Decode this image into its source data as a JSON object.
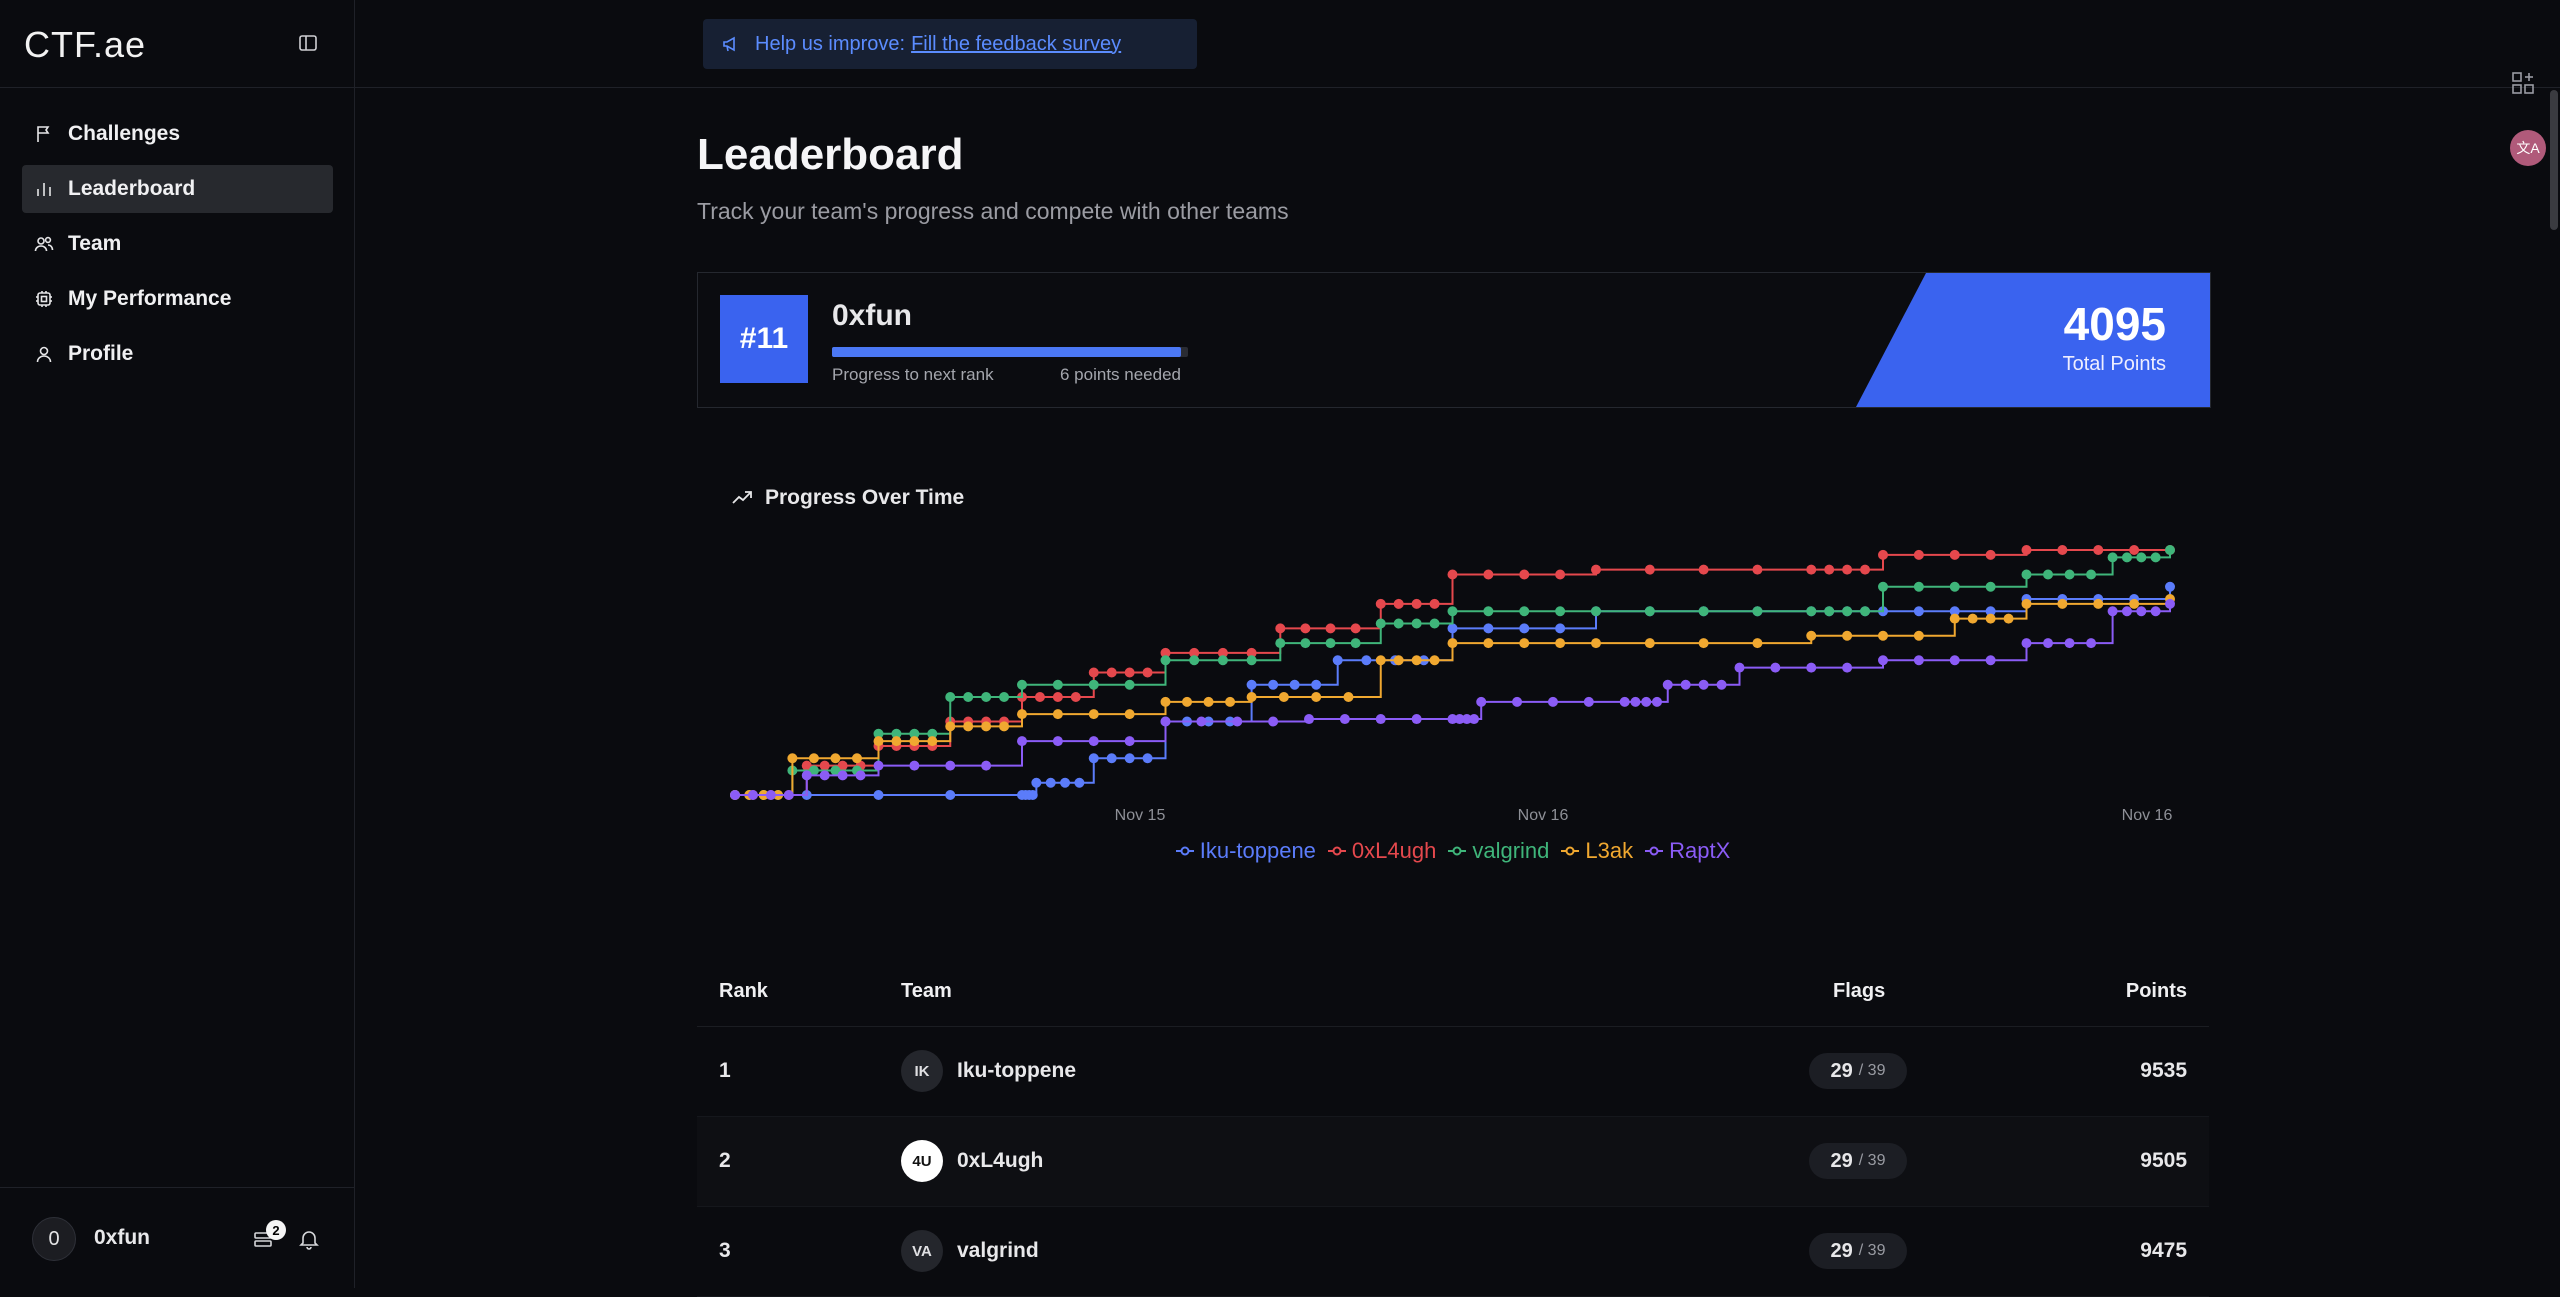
{
  "brand": {
    "logo": "CTF.ae"
  },
  "sidebar": {
    "items": [
      {
        "label": "Challenges",
        "icon": "flag-icon",
        "active": false
      },
      {
        "label": "Leaderboard",
        "icon": "bar-chart-icon",
        "active": true
      },
      {
        "label": "Team",
        "icon": "users-icon",
        "active": false
      },
      {
        "label": "My Performance",
        "icon": "chip-icon",
        "active": false
      },
      {
        "label": "Profile",
        "icon": "user-icon",
        "active": false
      }
    ],
    "user": {
      "avatar": "0",
      "name": "0xfun",
      "notification_count": "2"
    }
  },
  "topbar": {
    "feedback_prefix": "Help us improve:",
    "feedback_link": "Fill the feedback survey"
  },
  "page": {
    "title": "Leaderboard",
    "subtitle": "Track your team's progress and compete with other teams"
  },
  "my_rank": {
    "rank": "#11",
    "team": "0xfun",
    "progress_label": "Progress to next rank",
    "points_needed": "6 points needed",
    "progress_fraction": 0.98,
    "total_points": "4095",
    "total_points_label": "Total Points"
  },
  "chart_title": "Progress Over Time",
  "chart_data": {
    "type": "line",
    "x_ticks": [
      "Nov 15",
      "Nov 16",
      "Nov 16"
    ],
    "series": [
      {
        "name": "Iku-toppene",
        "color": "#5b7cfa",
        "points": [
          [
            0,
            0
          ],
          [
            0.2,
            0
          ],
          [
            0.21,
            0.05
          ],
          [
            0.25,
            0.15
          ],
          [
            0.3,
            0.3
          ],
          [
            0.36,
            0.45
          ],
          [
            0.42,
            0.55
          ],
          [
            0.5,
            0.68
          ],
          [
            0.6,
            0.75
          ],
          [
            0.75,
            0.75
          ],
          [
            0.8,
            0.75
          ],
          [
            0.9,
            0.8
          ],
          [
            1,
            0.85
          ]
        ]
      },
      {
        "name": "0xL4ugh",
        "color": "#e5484d",
        "points": [
          [
            0,
            0
          ],
          [
            0.05,
            0.12
          ],
          [
            0.1,
            0.2
          ],
          [
            0.15,
            0.3
          ],
          [
            0.2,
            0.4
          ],
          [
            0.25,
            0.5
          ],
          [
            0.3,
            0.58
          ],
          [
            0.38,
            0.68
          ],
          [
            0.45,
            0.78
          ],
          [
            0.5,
            0.9
          ],
          [
            0.6,
            0.92
          ],
          [
            0.75,
            0.92
          ],
          [
            0.8,
            0.98
          ],
          [
            0.9,
            1.0
          ],
          [
            1,
            1.0
          ]
        ]
      },
      {
        "name": "valgrind",
        "color": "#3fb57a",
        "points": [
          [
            0,
            0
          ],
          [
            0.04,
            0.1
          ],
          [
            0.1,
            0.25
          ],
          [
            0.15,
            0.4
          ],
          [
            0.2,
            0.45
          ],
          [
            0.3,
            0.55
          ],
          [
            0.38,
            0.62
          ],
          [
            0.45,
            0.7
          ],
          [
            0.5,
            0.75
          ],
          [
            0.6,
            0.75
          ],
          [
            0.75,
            0.75
          ],
          [
            0.8,
            0.85
          ],
          [
            0.9,
            0.9
          ],
          [
            0.96,
            0.97
          ],
          [
            1,
            1.0
          ]
        ]
      },
      {
        "name": "L3ak",
        "color": "#f0a830",
        "points": [
          [
            0,
            0
          ],
          [
            0.04,
            0.15
          ],
          [
            0.1,
            0.22
          ],
          [
            0.15,
            0.28
          ],
          [
            0.2,
            0.33
          ],
          [
            0.3,
            0.38
          ],
          [
            0.36,
            0.4
          ],
          [
            0.45,
            0.55
          ],
          [
            0.5,
            0.62
          ],
          [
            0.6,
            0.62
          ],
          [
            0.75,
            0.65
          ],
          [
            0.85,
            0.72
          ],
          [
            0.9,
            0.78
          ],
          [
            1,
            0.8
          ]
        ]
      },
      {
        "name": "RaptX",
        "color": "#8b5cf6",
        "points": [
          [
            0,
            0
          ],
          [
            0.05,
            0.08
          ],
          [
            0.1,
            0.12
          ],
          [
            0.2,
            0.22
          ],
          [
            0.3,
            0.3
          ],
          [
            0.4,
            0.31
          ],
          [
            0.5,
            0.31
          ],
          [
            0.52,
            0.38
          ],
          [
            0.62,
            0.38
          ],
          [
            0.65,
            0.45
          ],
          [
            0.7,
            0.52
          ],
          [
            0.8,
            0.55
          ],
          [
            0.9,
            0.62
          ],
          [
            0.96,
            0.75
          ],
          [
            1,
            0.78
          ]
        ]
      }
    ]
  },
  "table": {
    "headers": {
      "rank": "Rank",
      "team": "Team",
      "flags": "Flags",
      "points": "Points"
    },
    "rows": [
      {
        "rank": "1",
        "avatar": "IK",
        "team": "Iku-toppene",
        "flags": "29",
        "flags_total": "/ 39",
        "points": "9535"
      },
      {
        "rank": "2",
        "avatar": "4U",
        "team": "0xL4ugh",
        "flags": "29",
        "flags_total": "/ 39",
        "points": "9505"
      },
      {
        "rank": "3",
        "avatar": "VA",
        "team": "valgrind",
        "flags": "29",
        "flags_total": "/ 39",
        "points": "9475"
      }
    ]
  }
}
